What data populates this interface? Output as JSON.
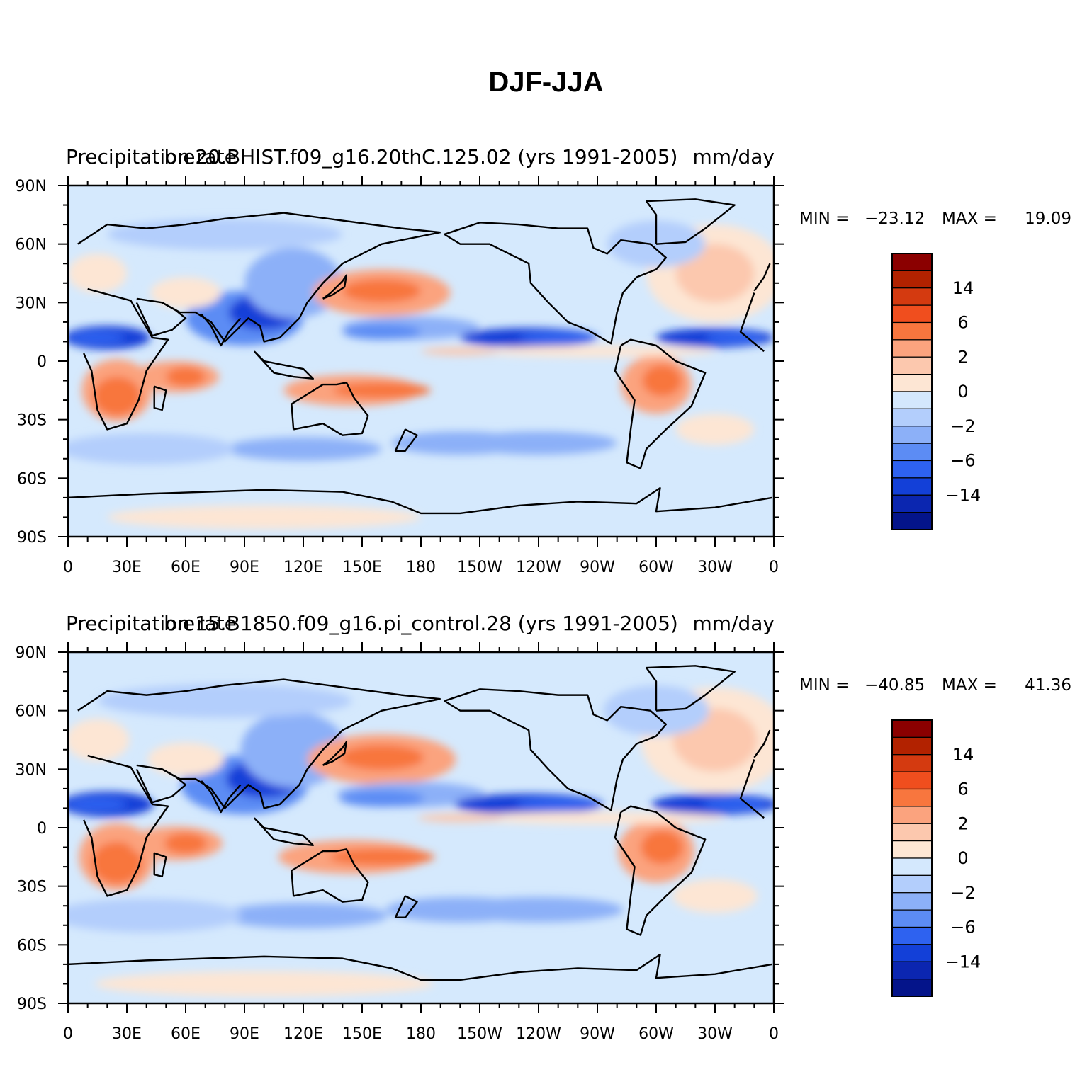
{
  "title": "DJF-JJA",
  "chart_data": [
    {
      "type": "heatmap",
      "left_title": "Precipitation rate",
      "center_title": "b.e20.BHIST.f09_g16.20thC.125.02 (yrs 1991-2005)",
      "right_title": "mm/day",
      "min_label": "MIN =",
      "min": "−23.12",
      "max_label": "MAX =",
      "max": "19.09",
      "x_ticks": [
        "0",
        "30E",
        "60E",
        "90E",
        "120E",
        "150E",
        "180",
        "150W",
        "120W",
        "90W",
        "60W",
        "30W",
        "0"
      ],
      "y_ticks": [
        "90N",
        "60N",
        "30N",
        "0",
        "30S",
        "60S",
        "90S"
      ],
      "xlim": [
        0,
        360
      ],
      "ylim": [
        -90,
        90
      ]
    },
    {
      "type": "heatmap",
      "left_title": "Precipitation rate",
      "center_title": "b.e15.B1850.f09_g16.pi_control.28 (yrs 1991-2005)",
      "right_title": "mm/day",
      "min_label": "MIN =",
      "min": "−40.85",
      "max_label": "MAX =",
      "max": "41.36",
      "x_ticks": [
        "0",
        "30E",
        "60E",
        "90E",
        "120E",
        "150E",
        "180",
        "150W",
        "120W",
        "90W",
        "60W",
        "30W",
        "0"
      ],
      "y_ticks": [
        "90N",
        "60N",
        "30N",
        "0",
        "30S",
        "60S",
        "90S"
      ],
      "xlim": [
        0,
        360
      ],
      "ylim": [
        -90,
        90
      ]
    }
  ],
  "colorbar": {
    "labels": [
      "14",
      "6",
      "2",
      "0",
      "−2",
      "−6",
      "−14"
    ],
    "colors": [
      "#8b0000",
      "#b22200",
      "#d43a10",
      "#f04e1e",
      "#f8763e",
      "#fba37e",
      "#fcc8ae",
      "#fde6d4",
      "#d4e8fd",
      "#b3cefc",
      "#8cb0f8",
      "#5c8cf4",
      "#2e62f0",
      "#1340d8",
      "#0b26b0",
      "#04148a"
    ]
  },
  "legend_colors": {
    "base": "#d5e9fd",
    "blue_light": "#b3cefc",
    "blue_mid": "#8cb0f8",
    "blue": "#5c8cf4",
    "blue_strong": "#2e62f0",
    "blue_deep": "#1340d8",
    "red_light": "#fde6d4",
    "red_pale": "#fcc8ae",
    "red_mid": "#fba37e",
    "red": "#f8763e",
    "red_strong": "#f04e1e",
    "red_deep": "#d43a10"
  }
}
